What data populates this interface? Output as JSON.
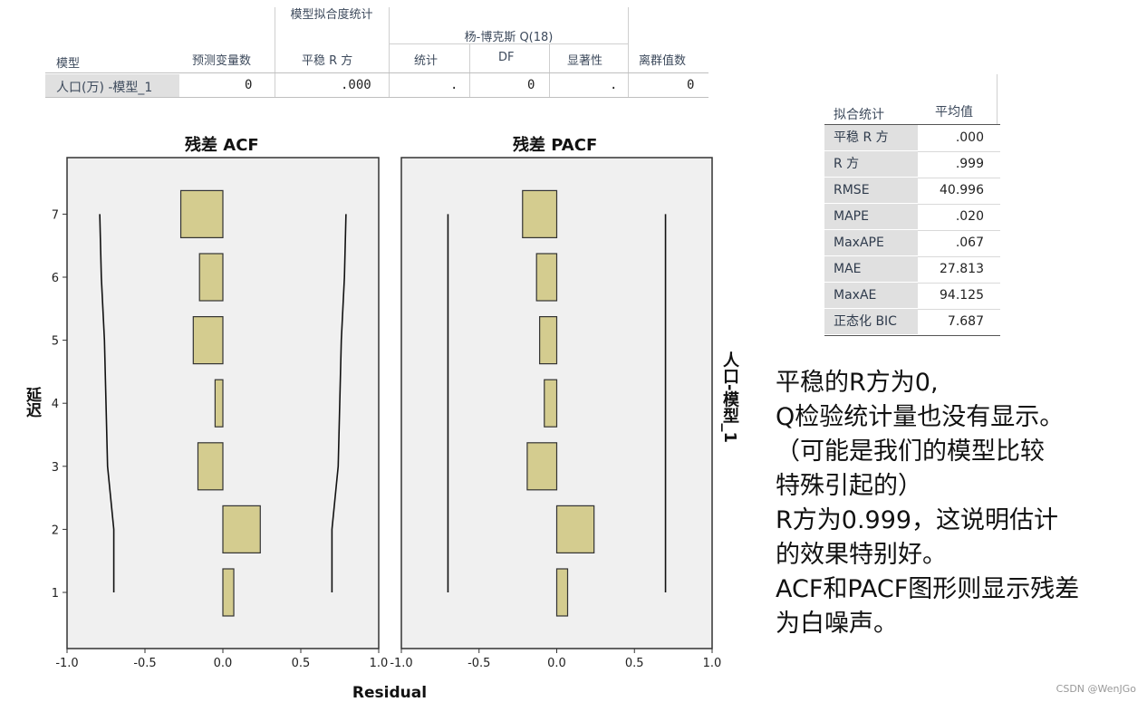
{
  "model_table": {
    "group_headers": {
      "fit": "模型拟合度统计",
      "ljung": "杨-博克斯 Q(18)"
    },
    "columns": [
      "模型",
      "预测变量数",
      "平稳 R 方",
      "统计",
      "DF",
      "显著性",
      "离群值数"
    ],
    "rows": [
      [
        "人口(万) -模型_1",
        "0",
        ".000",
        ".",
        "0",
        ".",
        "0"
      ]
    ]
  },
  "fit_table": {
    "headers": [
      "拟合统计",
      "平均值"
    ],
    "rows": [
      [
        "平稳 R 方",
        ".000"
      ],
      [
        "R 方",
        ".999"
      ],
      [
        "RMSE",
        "40.996"
      ],
      [
        "MAPE",
        ".020"
      ],
      [
        "MaxAPE",
        ".067"
      ],
      [
        "MAE",
        "27.813"
      ],
      [
        "MaxAE",
        "94.125"
      ],
      [
        "正态化 BIC",
        "7.687"
      ]
    ]
  },
  "notes": [
    "平稳的R方为0,",
    "Q检验统计量也没有显示。",
    "（可能是我们的模型比较",
    "特殊引起的）",
    "R方为0.999，这说明估计",
    "的效果特别好。",
    "ACF和PACF图形则显示残差",
    "为白噪声。"
  ],
  "watermark": "CSDN @WenJGo",
  "chart_data": [
    {
      "type": "bar",
      "orientation": "horizontal",
      "title": "残差 ACF",
      "ylabel": "延迟",
      "xlabel": "Residual",
      "lags": [
        1,
        2,
        3,
        4,
        5,
        6,
        7
      ],
      "values": [
        0.07,
        0.24,
        -0.16,
        -0.05,
        -0.19,
        -0.15,
        -0.27
      ],
      "confidence_upper": [
        0.7,
        0.7,
        0.74,
        0.75,
        0.76,
        0.78,
        0.79
      ],
      "confidence_lower": [
        -0.7,
        -0.7,
        -0.74,
        -0.75,
        -0.76,
        -0.78,
        -0.79
      ],
      "xlim": [
        -1.0,
        1.0
      ],
      "xticks": [
        "-1.0",
        "-0.5",
        "0.0",
        "0.5",
        "1.0"
      ],
      "yticks": [
        "1",
        "2",
        "3",
        "4",
        "5",
        "6",
        "7"
      ],
      "bar_color": "#d4cc8f"
    },
    {
      "type": "bar",
      "orientation": "horizontal",
      "title": "残差 PACF",
      "xlabel": "Residual",
      "lags": [
        1,
        2,
        3,
        4,
        5,
        6,
        7
      ],
      "values": [
        0.07,
        0.24,
        -0.19,
        -0.08,
        -0.11,
        -0.13,
        -0.22
      ],
      "confidence_upper": [
        0.7,
        0.7,
        0.7,
        0.7,
        0.7,
        0.7,
        0.7
      ],
      "confidence_lower": [
        -0.7,
        -0.7,
        -0.7,
        -0.7,
        -0.7,
        -0.7,
        -0.7
      ],
      "xlim": [
        -1.0,
        1.0
      ],
      "xticks": [
        "-1.0",
        "-0.5",
        "0.0",
        "0.5",
        "1.0"
      ],
      "bar_color": "#d4cc8f"
    }
  ],
  "side_label": "人口-模型_1"
}
